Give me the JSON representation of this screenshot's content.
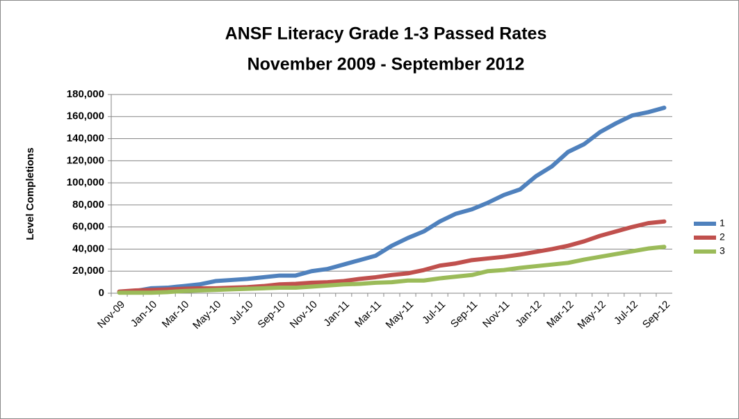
{
  "chart_data": {
    "type": "line",
    "title": "ANSF Literacy Grade 1-3  Passed Rates",
    "subtitle": "November 2009 - September 2012",
    "y_label": "Level Completions",
    "categories": [
      "Nov-09",
      null,
      "Jan-10",
      null,
      "Mar-10",
      null,
      "May-10",
      null,
      "Jul-10",
      null,
      "Sep-10",
      null,
      "Nov-10",
      null,
      "Jan-11",
      null,
      "Mar-11",
      null,
      "May-11",
      null,
      "Jul-11",
      null,
      "Sep-11",
      null,
      "Nov-11",
      null,
      "Jan-12",
      null,
      "Mar-12",
      null,
      "May-12",
      null,
      "Jul-12",
      null,
      "Sep-12"
    ],
    "series": [
      {
        "name": "1",
        "color": "#4f81bd",
        "values": [
          1000,
          2000,
          4500,
          5000,
          6500,
          8000,
          11000,
          12000,
          13000,
          14500,
          16000,
          16000,
          20000,
          22000,
          26000,
          30000,
          34000,
          43000,
          50000,
          56000,
          65000,
          72000,
          76000,
          82000,
          89000,
          94000,
          106000,
          115000,
          128000,
          135000,
          146000,
          154000,
          161000,
          164000,
          168000
        ]
      },
      {
        "name": "2",
        "color": "#c0504d",
        "values": [
          1500,
          2500,
          3000,
          3500,
          4000,
          4500,
          4500,
          5000,
          5500,
          6500,
          8000,
          8500,
          9500,
          10000,
          11000,
          13000,
          14500,
          16500,
          18000,
          21000,
          25000,
          27000,
          30000,
          31500,
          33000,
          35000,
          37500,
          40000,
          43000,
          47000,
          52000,
          56000,
          60000,
          63500,
          65000
        ]
      },
      {
        "name": "3",
        "color": "#9bbb59",
        "values": [
          500,
          500,
          500,
          1000,
          2000,
          2500,
          3000,
          3500,
          4000,
          4500,
          5000,
          5000,
          6000,
          7000,
          8000,
          8500,
          9500,
          10000,
          11500,
          11500,
          13500,
          15000,
          16500,
          20000,
          21000,
          23000,
          24500,
          26000,
          27500,
          30500,
          33000,
          35500,
          38000,
          40500,
          42000
        ]
      }
    ],
    "ylim": [
      0,
      180000
    ],
    "yticks": [
      0,
      {
        "value": 20000,
        "label": "20,000"
      },
      {
        "value": 40000,
        "label": "40,000"
      },
      {
        "value": 60000,
        "label": "60,000"
      },
      {
        "value": 80000,
        "label": "80,000"
      },
      {
        "value": 100000,
        "label": "100,000"
      },
      {
        "value": 120000,
        "label": "120,000"
      },
      {
        "value": 140000,
        "label": "140,000"
      },
      {
        "value": 160000,
        "label": "160,000"
      },
      {
        "value": 180000,
        "label": "180,000"
      }
    ],
    "grid": true,
    "legend": "right"
  }
}
